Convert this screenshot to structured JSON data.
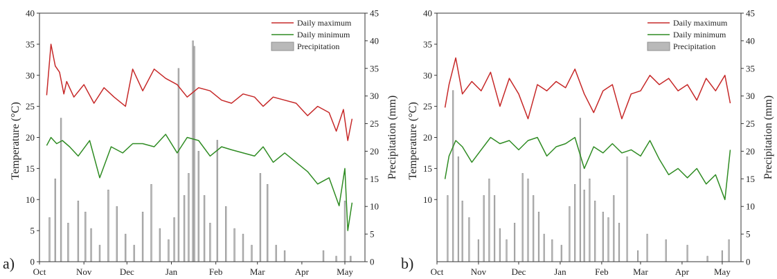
{
  "figure": {
    "panels": [
      {
        "label": "a)"
      },
      {
        "label": "b)"
      }
    ]
  },
  "chart_data": [
    {
      "type": "line",
      "panel": "a)",
      "title": "",
      "xlabel": "",
      "ylabel": "Temperature (°C)",
      "ylabel_right": "Precipitation (mm)",
      "x_ticks": [
        "Oct",
        "Nov",
        "Dec",
        "Jan",
        "Feb",
        "Mar",
        "Apr",
        "May"
      ],
      "xlim": [
        "2019-10-01",
        "2020-05-15"
      ],
      "ylim": [
        0,
        40
      ],
      "y_ticks": [
        0,
        5,
        10,
        15,
        20,
        25,
        30,
        35,
        40
      ],
      "ylim_right": [
        0,
        45
      ],
      "y_ticks_right": [
        0,
        5,
        10,
        15,
        20,
        25,
        30,
        35,
        40,
        45
      ],
      "legend": [
        "Daily maximum",
        "Daily minimum",
        "Precipitation"
      ],
      "legend_position": "top-right",
      "grid": false,
      "colors": {
        "max": "#c62828",
        "min": "#2e8b22",
        "precip": "#b9b9b9"
      },
      "series": [
        {
          "name": "Daily maximum",
          "kind": "line",
          "axis": "left",
          "x": [
            "2019-10-06",
            "2019-10-09",
            "2019-10-12",
            "2019-10-15",
            "2019-10-18",
            "2019-10-20",
            "2019-10-25",
            "2019-11-01",
            "2019-11-08",
            "2019-11-15",
            "2019-11-22",
            "2019-11-30",
            "2019-12-05",
            "2019-12-12",
            "2019-12-20",
            "2019-12-28",
            "2020-01-05",
            "2020-01-12",
            "2020-01-20",
            "2020-01-28",
            "2020-02-05",
            "2020-02-12",
            "2020-02-20",
            "2020-02-28",
            "2020-03-05",
            "2020-03-12",
            "2020-03-20",
            "2020-03-28",
            "2020-04-05",
            "2020-04-12",
            "2020-04-20",
            "2020-04-25",
            "2020-04-30",
            "2020-05-03",
            "2020-05-06"
          ],
          "y": [
            26.8,
            35.0,
            31.5,
            30.5,
            27.0,
            29.0,
            26.5,
            28.5,
            25.5,
            28.0,
            26.5,
            25.0,
            31.0,
            27.5,
            31.0,
            29.5,
            28.5,
            26.5,
            28.0,
            27.5,
            26.0,
            25.5,
            27.0,
            26.5,
            25.0,
            26.5,
            26.0,
            25.5,
            23.5,
            25.0,
            24.0,
            21.0,
            24.5,
            19.5,
            23.0
          ]
        },
        {
          "name": "Daily minimum",
          "kind": "line",
          "axis": "left",
          "x": [
            "2019-10-06",
            "2019-10-09",
            "2019-10-13",
            "2019-10-17",
            "2019-10-22",
            "2019-10-28",
            "2019-11-05",
            "2019-11-12",
            "2019-11-20",
            "2019-11-28",
            "2019-12-05",
            "2019-12-12",
            "2019-12-20",
            "2019-12-28",
            "2020-01-05",
            "2020-01-12",
            "2020-01-20",
            "2020-01-28",
            "2020-02-05",
            "2020-02-12",
            "2020-02-20",
            "2020-02-28",
            "2020-03-05",
            "2020-03-12",
            "2020-03-20",
            "2020-03-28",
            "2020-04-05",
            "2020-04-12",
            "2020-04-20",
            "2020-04-27",
            "2020-05-01",
            "2020-05-03",
            "2020-05-06"
          ],
          "y": [
            18.7,
            20.0,
            19.0,
            19.5,
            18.5,
            17.0,
            19.5,
            13.5,
            18.5,
            17.5,
            19.0,
            19.0,
            18.5,
            20.5,
            17.5,
            20.0,
            19.5,
            17.0,
            18.5,
            18.0,
            17.5,
            17.0,
            18.5,
            16.0,
            17.5,
            16.0,
            14.5,
            12.5,
            13.5,
            9.0,
            15.0,
            5.0,
            9.5
          ]
        },
        {
          "name": "Precipitation",
          "kind": "bar",
          "axis": "right",
          "x": [
            "2019-10-08",
            "2019-10-12",
            "2019-10-16",
            "2019-10-21",
            "2019-10-28",
            "2019-11-02",
            "2019-11-06",
            "2019-11-12",
            "2019-11-18",
            "2019-11-24",
            "2019-11-30",
            "2019-12-06",
            "2019-12-12",
            "2019-12-18",
            "2019-12-24",
            "2019-12-30",
            "2020-01-03",
            "2020-01-06",
            "2020-01-10",
            "2020-01-13",
            "2020-01-16",
            "2020-01-17",
            "2020-01-20",
            "2020-01-24",
            "2020-01-28",
            "2020-02-02",
            "2020-02-08",
            "2020-02-14",
            "2020-02-20",
            "2020-02-26",
            "2020-03-03",
            "2020-03-08",
            "2020-03-14",
            "2020-03-20",
            "2020-04-16",
            "2020-04-25",
            "2020-05-01",
            "2020-05-05"
          ],
          "y": [
            8,
            15,
            26,
            7,
            11,
            9,
            6,
            3,
            13,
            10,
            5,
            3,
            9,
            14,
            6,
            4,
            8,
            35,
            12,
            16,
            40,
            39,
            20,
            12,
            7,
            22,
            10,
            6,
            5,
            3,
            16,
            14,
            3,
            2,
            2,
            1,
            11,
            1
          ]
        }
      ]
    },
    {
      "type": "line",
      "panel": "b)",
      "title": "",
      "xlabel": "",
      "ylabel": "Temperature (°C)",
      "ylabel_right": "Precipitation (mm)",
      "x_ticks": [
        "Oct",
        "Nov",
        "Dec",
        "Jan",
        "Feb",
        "Mar",
        "Apr",
        "May"
      ],
      "xlim": [
        "2019-10-01",
        "2020-05-15"
      ],
      "ylim": [
        0,
        40
      ],
      "y_ticks": [
        10,
        15,
        20,
        25,
        30,
        35,
        40
      ],
      "ylim_right": [
        0,
        45
      ],
      "y_ticks_right": [
        0,
        5,
        10,
        15,
        20,
        25,
        30,
        35,
        40,
        45
      ],
      "legend": [
        "Daily maximum",
        "Daily minimum",
        "Precipitation"
      ],
      "legend_position": "top-right",
      "grid": false,
      "colors": {
        "max": "#c62828",
        "min": "#2e8b22",
        "precip": "#b9b9b9"
      },
      "series": [
        {
          "name": "Daily maximum",
          "kind": "line",
          "axis": "left",
          "x": [
            "2019-10-07",
            "2019-10-10",
            "2019-10-15",
            "2019-10-20",
            "2019-10-27",
            "2019-11-03",
            "2019-11-10",
            "2019-11-17",
            "2019-11-24",
            "2019-12-01",
            "2019-12-08",
            "2019-12-15",
            "2019-12-22",
            "2019-12-29",
            "2020-01-05",
            "2020-01-12",
            "2020-01-19",
            "2020-01-26",
            "2020-02-02",
            "2020-02-09",
            "2020-02-16",
            "2020-02-23",
            "2020-03-01",
            "2020-03-08",
            "2020-03-15",
            "2020-03-22",
            "2020-03-29",
            "2020-04-05",
            "2020-04-12",
            "2020-04-19",
            "2020-04-26",
            "2020-05-03",
            "2020-05-07"
          ],
          "y": [
            24.8,
            28.5,
            32.8,
            27.0,
            29.0,
            27.5,
            30.5,
            25.0,
            29.5,
            27.0,
            23.0,
            28.5,
            27.5,
            29.0,
            28.0,
            31.0,
            27.0,
            24.0,
            27.5,
            28.5,
            23.0,
            27.0,
            27.5,
            30.0,
            28.5,
            29.5,
            27.5,
            28.5,
            26.0,
            29.5,
            27.5,
            30.0,
            25.5
          ]
        },
        {
          "name": "Daily minimum",
          "kind": "line",
          "axis": "left",
          "x": [
            "2019-10-07",
            "2019-10-10",
            "2019-10-15",
            "2019-10-20",
            "2019-10-27",
            "2019-11-03",
            "2019-11-10",
            "2019-11-17",
            "2019-11-24",
            "2019-12-01",
            "2019-12-08",
            "2019-12-15",
            "2019-12-22",
            "2019-12-29",
            "2020-01-05",
            "2020-01-12",
            "2020-01-19",
            "2020-01-26",
            "2020-02-02",
            "2020-02-09",
            "2020-02-16",
            "2020-02-23",
            "2020-03-01",
            "2020-03-08",
            "2020-03-15",
            "2020-03-22",
            "2020-03-29",
            "2020-04-05",
            "2020-04-12",
            "2020-04-19",
            "2020-04-26",
            "2020-05-03",
            "2020-05-07"
          ],
          "y": [
            13.3,
            17.0,
            19.5,
            18.5,
            16.0,
            18.0,
            20.0,
            19.0,
            19.5,
            18.0,
            19.5,
            20.0,
            17.0,
            18.5,
            19.0,
            20.0,
            15.0,
            18.5,
            17.5,
            19.0,
            17.5,
            18.0,
            17.0,
            19.5,
            16.5,
            14.0,
            15.0,
            13.5,
            15.0,
            12.5,
            14.0,
            10.0,
            18.0
          ]
        },
        {
          "name": "Precipitation",
          "kind": "bar",
          "axis": "right",
          "x": [
            "2019-10-09",
            "2019-10-13",
            "2019-10-17",
            "2019-10-20",
            "2019-10-25",
            "2019-11-01",
            "2019-11-05",
            "2019-11-09",
            "2019-11-13",
            "2019-11-17",
            "2019-11-22",
            "2019-11-28",
            "2019-12-04",
            "2019-12-08",
            "2019-12-12",
            "2019-12-16",
            "2019-12-20",
            "2019-12-26",
            "2020-01-02",
            "2020-01-08",
            "2020-01-12",
            "2020-01-16",
            "2020-01-19",
            "2020-01-23",
            "2020-01-27",
            "2020-02-02",
            "2020-02-06",
            "2020-02-10",
            "2020-02-14",
            "2020-02-20",
            "2020-02-28",
            "2020-03-06",
            "2020-03-20",
            "2020-04-05",
            "2020-04-20",
            "2020-05-01",
            "2020-05-06"
          ],
          "y": [
            12,
            31,
            19,
            11,
            8,
            4,
            12,
            15,
            12,
            6,
            4,
            7,
            16,
            15,
            12,
            9,
            5,
            4,
            3,
            10,
            14,
            26,
            13,
            15,
            11,
            9,
            8,
            12,
            7,
            19,
            2,
            5,
            4,
            3,
            1,
            2,
            4
          ]
        }
      ]
    }
  ]
}
